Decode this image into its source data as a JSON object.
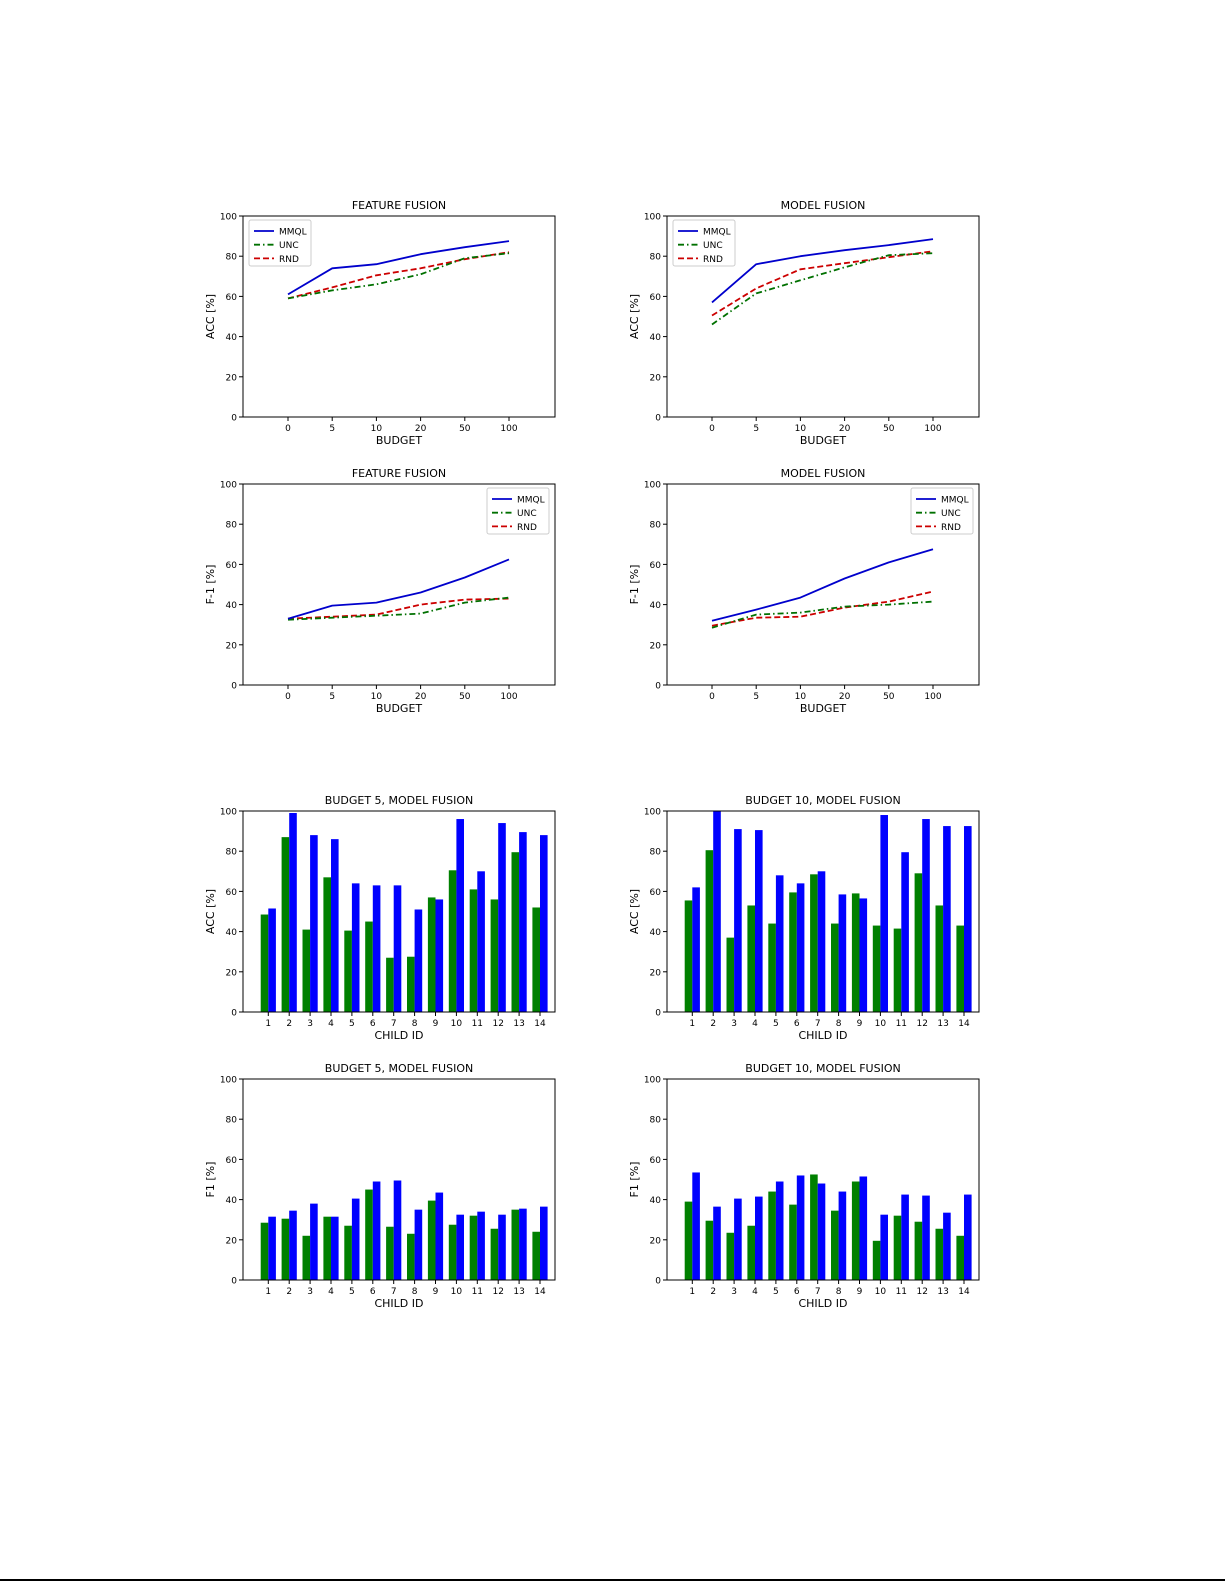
{
  "chart_data": [
    {
      "type": "line",
      "title": "FEATURE FUSION",
      "xlabel": "BUDGET",
      "ylabel": "ACC [%]",
      "categories": [
        "0",
        "5",
        "10",
        "20",
        "50",
        "100"
      ],
      "ylim": [
        0,
        100
      ],
      "yticks": [
        "0",
        "20",
        "40",
        "60",
        "80",
        "100"
      ],
      "legend_position": "top-left",
      "grid": false,
      "series": [
        {
          "name": "MMQL",
          "values": [
            61,
            74,
            76,
            81,
            84.5,
            87.5
          ]
        },
        {
          "name": "UNC",
          "values": [
            59,
            63,
            66,
            71,
            79,
            81.5
          ]
        },
        {
          "name": "RND",
          "values": [
            59,
            64.5,
            70.5,
            74,
            78.5,
            82
          ]
        }
      ]
    },
    {
      "type": "line",
      "title": "MODEL FUSION",
      "xlabel": "BUDGET",
      "ylabel": "ACC [%]",
      "categories": [
        "0",
        "5",
        "10",
        "20",
        "50",
        "100"
      ],
      "ylim": [
        0,
        100
      ],
      "yticks": [
        "0",
        "20",
        "40",
        "60",
        "80",
        "100"
      ],
      "legend_position": "top-left",
      "grid": false,
      "series": [
        {
          "name": "MMQL",
          "values": [
            57,
            76,
            80,
            83,
            85.5,
            88.5
          ]
        },
        {
          "name": "UNC",
          "values": [
            46,
            61.5,
            68,
            74.5,
            80.5,
            81.5
          ]
        },
        {
          "name": "RND",
          "values": [
            50.5,
            64,
            73.5,
            76.5,
            79.5,
            82.5
          ]
        }
      ]
    },
    {
      "type": "line",
      "title": "FEATURE FUSION",
      "xlabel": "BUDGET",
      "ylabel": "F-1 [%]",
      "categories": [
        "0",
        "5",
        "10",
        "20",
        "50",
        "100"
      ],
      "ylim": [
        0,
        100
      ],
      "yticks": [
        "0",
        "20",
        "40",
        "60",
        "80",
        "100"
      ],
      "legend_position": "top-right",
      "grid": false,
      "series": [
        {
          "name": "MMQL",
          "values": [
            33,
            39.5,
            41,
            46,
            53.5,
            62.5
          ]
        },
        {
          "name": "UNC",
          "values": [
            32.5,
            33.5,
            34.5,
            35.5,
            41,
            43.5
          ]
        },
        {
          "name": "RND",
          "values": [
            33,
            34,
            35,
            40,
            42.5,
            43
          ]
        }
      ]
    },
    {
      "type": "line",
      "title": "MODEL FUSION",
      "xlabel": "BUDGET",
      "ylabel": "F-1 [%]",
      "categories": [
        "0",
        "5",
        "10",
        "20",
        "50",
        "100"
      ],
      "ylim": [
        0,
        100
      ],
      "yticks": [
        "0",
        "20",
        "40",
        "60",
        "80",
        "100"
      ],
      "legend_position": "top-right",
      "grid": false,
      "series": [
        {
          "name": "MMQL",
          "values": [
            32,
            37.5,
            43.5,
            53,
            61,
            67.5
          ]
        },
        {
          "name": "UNC",
          "values": [
            28.5,
            35,
            36,
            39,
            40,
            41.5
          ]
        },
        {
          "name": "RND",
          "values": [
            29.5,
            33.5,
            34,
            38.5,
            41.5,
            46.5
          ]
        }
      ]
    },
    {
      "type": "bar",
      "title": "BUDGET 5, MODEL FUSION",
      "xlabel": "CHILD ID",
      "ylabel": "ACC [%]",
      "categories": [
        "1",
        "2",
        "3",
        "4",
        "5",
        "6",
        "7",
        "8",
        "9",
        "10",
        "11",
        "12",
        "13",
        "14"
      ],
      "ylim": [
        0,
        100
      ],
      "yticks": [
        "0",
        "20",
        "40",
        "60",
        "80",
        "100"
      ],
      "grid": false,
      "series": [
        {
          "color": "#008000",
          "values": [
            48.5,
            87,
            41,
            67,
            40.5,
            45,
            27,
            27.5,
            57,
            70.5,
            61,
            56,
            79.5,
            52
          ]
        },
        {
          "color": "#0000ff",
          "values": [
            51.5,
            99,
            88,
            86,
            64,
            63,
            63,
            51,
            56,
            96,
            70,
            94,
            89.5,
            88
          ]
        }
      ]
    },
    {
      "type": "bar",
      "title": "BUDGET 10, MODEL FUSION",
      "xlabel": "CHILD ID",
      "ylabel": "ACC [%]",
      "categories": [
        "1",
        "2",
        "3",
        "4",
        "5",
        "6",
        "7",
        "8",
        "9",
        "10",
        "11",
        "12",
        "13",
        "14"
      ],
      "ylim": [
        0,
        100
      ],
      "yticks": [
        "0",
        "20",
        "40",
        "60",
        "80",
        "100"
      ],
      "grid": false,
      "series": [
        {
          "color": "#008000",
          "values": [
            55.5,
            80.5,
            37,
            53,
            44,
            59.5,
            68.5,
            44,
            59,
            43,
            41.5,
            69,
            53,
            43
          ]
        },
        {
          "color": "#0000ff",
          "values": [
            62,
            100,
            91,
            90.5,
            68,
            64,
            70,
            58.5,
            56.5,
            98,
            79.5,
            96,
            92.5,
            92.5
          ]
        }
      ]
    },
    {
      "type": "bar",
      "title": "BUDGET 5, MODEL FUSION",
      "xlabel": "CHILD ID",
      "ylabel": "F1 [%]",
      "categories": [
        "1",
        "2",
        "3",
        "4",
        "5",
        "6",
        "7",
        "8",
        "9",
        "10",
        "11",
        "12",
        "13",
        "14"
      ],
      "ylim": [
        0,
        100
      ],
      "yticks": [
        "0",
        "20",
        "40",
        "60",
        "80",
        "100"
      ],
      "grid": false,
      "series": [
        {
          "color": "#008000",
          "values": [
            28.5,
            30.5,
            22,
            31.5,
            27,
            45,
            26.5,
            23,
            39.5,
            27.5,
            32,
            25.5,
            35,
            24
          ]
        },
        {
          "color": "#0000ff",
          "values": [
            31.5,
            34.5,
            38,
            31.5,
            40.5,
            49,
            49.5,
            35,
            43.5,
            32.5,
            34,
            32.5,
            35.5,
            36.5
          ]
        }
      ]
    },
    {
      "type": "bar",
      "title": "BUDGET 10, MODEL FUSION",
      "xlabel": "CHILD ID",
      "ylabel": "F1 [%]",
      "categories": [
        "1",
        "2",
        "3",
        "4",
        "5",
        "6",
        "7",
        "8",
        "9",
        "10",
        "11",
        "12",
        "13",
        "14"
      ],
      "ylim": [
        0,
        100
      ],
      "yticks": [
        "0",
        "20",
        "40",
        "60",
        "80",
        "100"
      ],
      "grid": false,
      "series": [
        {
          "color": "#008000",
          "values": [
            39,
            29.5,
            23.5,
            27,
            44,
            37.5,
            52.5,
            34.5,
            49,
            19.5,
            32,
            29,
            25.5,
            22
          ]
        },
        {
          "color": "#0000ff",
          "values": [
            53.5,
            36.5,
            40.5,
            41.5,
            49,
            52,
            48,
            44,
            51.5,
            32.5,
            42.5,
            42,
            33.5,
            42.5
          ]
        }
      ]
    }
  ],
  "style": {
    "line_series": [
      {
        "color": "#0000cc",
        "dash": "none"
      },
      {
        "color": "#007000",
        "dash": "6,3,1.5,3"
      },
      {
        "color": "#cc0000",
        "dash": "6,3"
      }
    ]
  }
}
